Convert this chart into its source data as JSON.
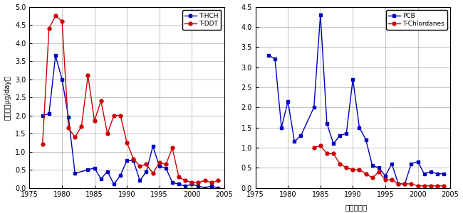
{
  "left": {
    "hch_x": [
      1977,
      1978,
      1979,
      1980,
      1981,
      1982,
      1984,
      1985,
      1986,
      1987,
      1988,
      1989,
      1990,
      1991,
      1992,
      1993,
      1994,
      1995,
      1996,
      1997,
      1998,
      1999,
      2000,
      2001,
      2002,
      2003,
      2004
    ],
    "hch_y": [
      2.0,
      2.05,
      3.65,
      3.0,
      1.95,
      0.4,
      0.5,
      0.55,
      0.25,
      0.45,
      0.1,
      0.35,
      0.75,
      0.75,
      0.2,
      0.45,
      1.15,
      0.6,
      0.55,
      0.15,
      0.1,
      0.05,
      0.1,
      0.05,
      0.0,
      0.05,
      0.0
    ],
    "ddt_x": [
      1977,
      1978,
      1979,
      1980,
      1981,
      1982,
      1983,
      1984,
      1985,
      1986,
      1987,
      1988,
      1989,
      1990,
      1991,
      1992,
      1993,
      1994,
      1995,
      1996,
      1997,
      1998,
      1999,
      2000,
      2001,
      2002,
      2003,
      2004
    ],
    "ddt_y": [
      1.2,
      4.4,
      4.75,
      4.6,
      1.65,
      1.4,
      1.7,
      3.1,
      1.85,
      2.4,
      1.5,
      2.0,
      2.0,
      1.25,
      0.8,
      0.6,
      0.65,
      0.4,
      0.7,
      0.65,
      1.1,
      0.3,
      0.2,
      0.15,
      0.15,
      0.2,
      0.15,
      0.2
    ],
    "ylim": [
      0,
      5
    ],
    "yticks": [
      0,
      0.5,
      1.0,
      1.5,
      2.0,
      2.5,
      3.0,
      3.5,
      4.0,
      4.5,
      5.0
    ],
    "xlim": [
      1975,
      2005
    ],
    "xticks": [
      1975,
      1980,
      1985,
      1990,
      1995,
      2000,
      2005
    ],
    "ylabel": "摂取量（μg/day）",
    "legend1": "T-HCH",
    "legend2": "T-DDT"
  },
  "right": {
    "pcb_x": [
      1977,
      1978,
      1979,
      1980,
      1981,
      1982,
      1984,
      1985,
      1986,
      1987,
      1988,
      1989,
      1990,
      1991,
      1992,
      1993,
      1994,
      1995,
      1996,
      1997,
      1998,
      1999,
      2000,
      2001,
      2002,
      2003,
      2004
    ],
    "pcb_y": [
      3.3,
      3.2,
      1.5,
      2.15,
      1.15,
      1.3,
      2.0,
      4.3,
      1.6,
      1.1,
      1.3,
      1.35,
      2.7,
      1.5,
      1.2,
      0.55,
      0.5,
      0.3,
      0.6,
      0.1,
      0.1,
      0.6,
      0.65,
      0.35,
      0.4,
      0.35,
      0.35
    ],
    "chl_x": [
      1984,
      1985,
      1986,
      1987,
      1988,
      1989,
      1990,
      1991,
      1992,
      1993,
      1994,
      1995,
      1996,
      1997,
      1998,
      1999,
      2000,
      2001,
      2002,
      2003,
      2004
    ],
    "chl_y": [
      1.0,
      1.05,
      0.85,
      0.85,
      0.6,
      0.5,
      0.45,
      0.45,
      0.35,
      0.25,
      0.4,
      0.2,
      0.2,
      0.1,
      0.1,
      0.1,
      0.05,
      0.05,
      0.05,
      0.05,
      0.05
    ],
    "ylim": [
      0,
      4.5
    ],
    "yticks": [
      0,
      0.5,
      1.0,
      1.5,
      2.0,
      2.5,
      3.0,
      3.5,
      4.0,
      4.5
    ],
    "xlim": [
      1975,
      2005
    ],
    "xticks": [
      1975,
      1980,
      1985,
      1990,
      1995,
      2000,
      2005
    ],
    "legend1": "PCB",
    "legend2": "T-Chlordanes"
  },
  "xlabel": "試科採取年",
  "blue_color": "#0000bb",
  "red_color": "#cc0000",
  "grid_color": "#aaaaaa",
  "bg_color": "#ffffff"
}
